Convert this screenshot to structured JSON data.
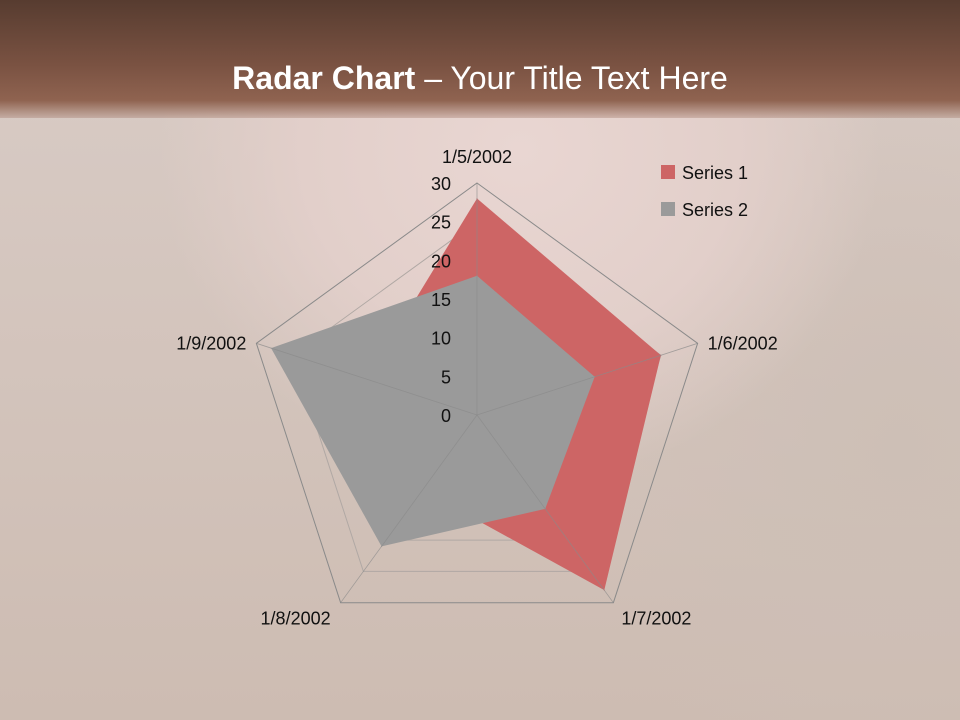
{
  "slide": {
    "title_bold": "Radar Chart",
    "title_rest": " – Your Title Text Here"
  },
  "chart_data": {
    "type": "radar",
    "categories": [
      "1/5/2002",
      "1/6/2002",
      "1/7/2002",
      "1/8/2002",
      "1/9/2002"
    ],
    "series": [
      {
        "name": "Series 1",
        "values": [
          28,
          25,
          28,
          12,
          15
        ],
        "color": "#cd6565"
      },
      {
        "name": "Series 2",
        "values": [
          18,
          16,
          15,
          21,
          28
        ],
        "color": "#9a9a9a"
      }
    ],
    "rlim": [
      0,
      30
    ],
    "r_ticks": [
      "0",
      "5",
      "10",
      "15",
      "20",
      "25",
      "30"
    ],
    "legend_position": "top-right",
    "grid": true
  }
}
